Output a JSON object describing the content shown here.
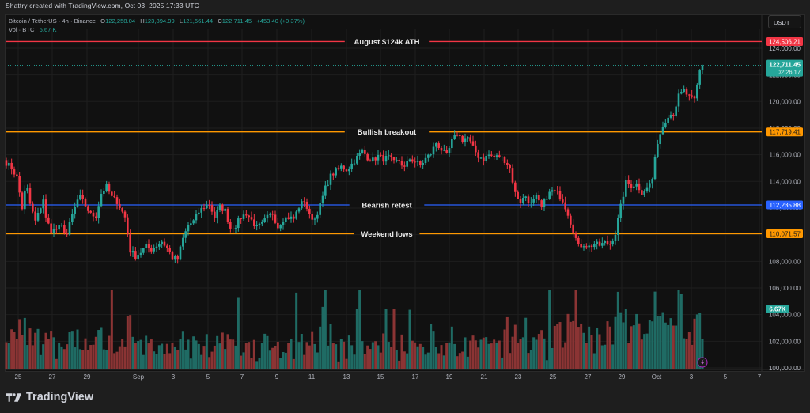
{
  "header": {
    "credit": "Shattry created with TradingView.com, Oct 03, 2025 17:33 UTC"
  },
  "legend": {
    "symbol": "Bitcoin / TetherUS · 4h · Binance",
    "open_label": "O",
    "open": "122,258.04",
    "high_label": "H",
    "high": "123,894.99",
    "low_label": "L",
    "low": "121,661.44",
    "close_label": "C",
    "close": "122,711.45",
    "change": "+453.40 (+0.37%)",
    "volume_label": "Vol · BTC",
    "volume": "6.67 K"
  },
  "currency_button": "USDT",
  "footer": {
    "brand": "TradingView"
  },
  "colors": {
    "up": "#26a69a",
    "down": "#f23645",
    "volume_up": "#1f6b64",
    "volume_down": "#8b3434",
    "ath_line": "#f23645",
    "orange_line": "#ff9800",
    "blue_line": "#2962ff",
    "background": "#111111",
    "grid": "#1e1e1e"
  },
  "chart_data": {
    "type": "candlestick",
    "title": "Bitcoin / TetherUS · 4h · Binance",
    "xlabel": "",
    "ylabel": "USDT",
    "ylim": [
      100000,
      125500
    ],
    "x_ticks": [
      "25",
      "27",
      "29",
      "Sep",
      "3",
      "5",
      "7",
      "9",
      "11",
      "13",
      "15",
      "17",
      "19",
      "21",
      "23",
      "25",
      "27",
      "29",
      "Oct",
      "3",
      "5",
      "7"
    ],
    "y_ticks": [
      "124,000.00",
      "122,000.00",
      "120,000.00",
      "118,000.00",
      "116,000.00",
      "114,000.00",
      "112,000.00",
      "110,000.00",
      "108,000.00",
      "106,000.00",
      "104,000.00",
      "102,000.00",
      "100,000.00"
    ],
    "horizontal_levels": [
      {
        "label": "August $124k ATH",
        "price": 124506.21,
        "price_label": "124,506.21",
        "color": "#f23645"
      },
      {
        "label": "Bullish breakout",
        "price": 117719.41,
        "price_label": "117,719.41",
        "color": "#ff9800"
      },
      {
        "label": "Bearish retest",
        "price": 112235.88,
        "price_label": "112,235.88",
        "color": "#2962ff"
      },
      {
        "label": "Weekend lows",
        "price": 110071.57,
        "price_label": "110,071.57",
        "color": "#ff9800"
      }
    ],
    "last_price": {
      "value": 122711.45,
      "label": "122,711.45",
      "countdown": "02:26:17"
    },
    "last_volume_label": "6.67K",
    "close_waypoints": [
      [
        0,
        115400
      ],
      [
        2,
        115000
      ],
      [
        4,
        114300
      ],
      [
        6,
        112000
      ],
      [
        7,
        113200
      ],
      [
        8,
        113400
      ],
      [
        9,
        112300
      ],
      [
        11,
        111000
      ],
      [
        12,
        111500
      ],
      [
        14,
        112700
      ],
      [
        15,
        111200
      ],
      [
        17,
        110300
      ],
      [
        19,
        110400
      ],
      [
        21,
        110600
      ],
      [
        23,
        110000
      ],
      [
        25,
        111500
      ],
      [
        27,
        112600
      ],
      [
        28,
        112800
      ],
      [
        30,
        112200
      ],
      [
        32,
        111500
      ],
      [
        34,
        111400
      ],
      [
        36,
        113100
      ],
      [
        38,
        113600
      ],
      [
        40,
        112800
      ],
      [
        42,
        112500
      ],
      [
        45,
        111300
      ],
      [
        47,
        108800
      ],
      [
        49,
        108400
      ],
      [
        51,
        108700
      ],
      [
        53,
        109100
      ],
      [
        55,
        108900
      ],
      [
        57,
        109200
      ],
      [
        59,
        109500
      ],
      [
        61,
        109000
      ],
      [
        63,
        108300
      ],
      [
        65,
        108200
      ],
      [
        67,
        109700
      ],
      [
        69,
        110700
      ],
      [
        71,
        111000
      ],
      [
        73,
        111700
      ],
      [
        75,
        112100
      ],
      [
        77,
        112300
      ],
      [
        79,
        111300
      ],
      [
        81,
        112100
      ],
      [
        83,
        111800
      ],
      [
        85,
        110500
      ],
      [
        87,
        110700
      ],
      [
        89,
        111300
      ],
      [
        91,
        111600
      ],
      [
        93,
        111100
      ],
      [
        95,
        110500
      ],
      [
        97,
        110800
      ],
      [
        99,
        111300
      ],
      [
        101,
        111600
      ],
      [
        103,
        110600
      ],
      [
        105,
        111200
      ],
      [
        107,
        111300
      ],
      [
        109,
        111200
      ],
      [
        111,
        112100
      ],
      [
        113,
        112600
      ],
      [
        115,
        111400
      ],
      [
        117,
        111200
      ],
      [
        119,
        112200
      ],
      [
        121,
        113500
      ],
      [
        123,
        114400
      ],
      [
        125,
        114800
      ],
      [
        127,
        115100
      ],
      [
        129,
        114900
      ],
      [
        131,
        115300
      ],
      [
        133,
        115800
      ],
      [
        135,
        116300
      ],
      [
        137,
        115800
      ],
      [
        139,
        115600
      ],
      [
        141,
        115900
      ],
      [
        143,
        115700
      ],
      [
        145,
        115800
      ],
      [
        147,
        115400
      ],
      [
        149,
        115600
      ],
      [
        151,
        115000
      ],
      [
        153,
        115700
      ],
      [
        155,
        115500
      ],
      [
        157,
        115200
      ],
      [
        159,
        115700
      ],
      [
        161,
        116100
      ],
      [
        163,
        116900
      ],
      [
        165,
        116400
      ],
      [
        167,
        115900
      ],
      [
        169,
        117000
      ],
      [
        171,
        117600
      ],
      [
        173,
        117100
      ],
      [
        175,
        117300
      ],
      [
        177,
        116500
      ],
      [
        179,
        115900
      ],
      [
        181,
        115700
      ],
      [
        183,
        116000
      ],
      [
        185,
        115800
      ],
      [
        187,
        115900
      ],
      [
        189,
        115600
      ],
      [
        191,
        115000
      ],
      [
        193,
        113100
      ],
      [
        195,
        112500
      ],
      [
        197,
        112900
      ],
      [
        199,
        112300
      ],
      [
        201,
        112800
      ],
      [
        203,
        112000
      ],
      [
        205,
        112900
      ],
      [
        207,
        113300
      ],
      [
        209,
        113100
      ],
      [
        211,
        112600
      ],
      [
        213,
        111600
      ],
      [
        215,
        110300
      ],
      [
        217,
        109100
      ],
      [
        219,
        109300
      ],
      [
        221,
        109100
      ],
      [
        223,
        109300
      ],
      [
        225,
        109200
      ],
      [
        227,
        109400
      ],
      [
        229,
        109300
      ],
      [
        231,
        110100
      ],
      [
        233,
        112100
      ],
      [
        235,
        113900
      ],
      [
        237,
        113700
      ],
      [
        239,
        113800
      ],
      [
        241,
        113200
      ],
      [
        243,
        113500
      ],
      [
        245,
        114200
      ],
      [
        247,
        117000
      ],
      [
        249,
        118200
      ],
      [
        251,
        119000
      ],
      [
        253,
        119100
      ],
      [
        255,
        120400
      ],
      [
        257,
        120800
      ],
      [
        259,
        120300
      ],
      [
        261,
        120100
      ],
      [
        263,
        122300
      ],
      [
        264,
        122711
      ]
    ]
  }
}
